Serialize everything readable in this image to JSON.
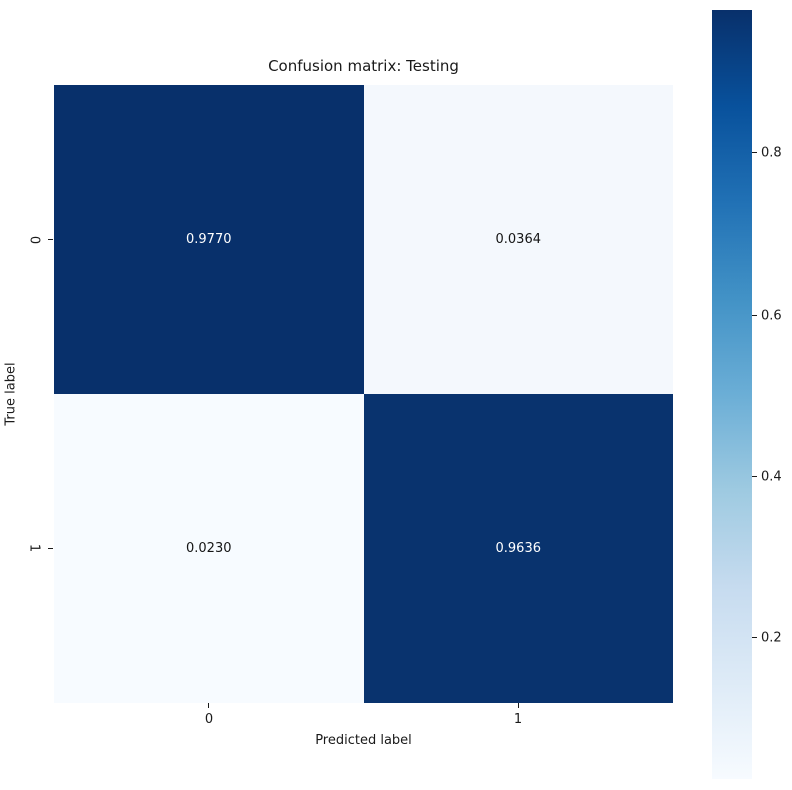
{
  "chart_data": {
    "type": "heatmap",
    "title": "Confusion matrix: Testing",
    "xlabel": "Predicted label",
    "ylabel": "True label",
    "x_tick_labels": [
      "0",
      "1"
    ],
    "y_tick_labels": [
      "0",
      "1"
    ],
    "matrix": [
      [
        0.977,
        0.0364
      ],
      [
        0.023,
        0.9636
      ]
    ],
    "cells": [
      {
        "row": "0",
        "col": "0",
        "label": "0.9770",
        "bg": "#08306b",
        "fg": "#ffffff"
      },
      {
        "row": "0",
        "col": "1",
        "label": "0.0364",
        "bg": "#f4f8fd",
        "fg": "#151515"
      },
      {
        "row": "1",
        "col": "0",
        "label": "0.0230",
        "bg": "#f7fbff",
        "fg": "#151515"
      },
      {
        "row": "1",
        "col": "1",
        "label": "0.9636",
        "bg": "#09336e",
        "fg": "#ffffff"
      }
    ],
    "colormap": "Blues",
    "grid": false,
    "colorbar": {
      "position": "right",
      "tick_labels": [
        "0.8",
        "0.6",
        "0.4",
        "0.2"
      ],
      "ticks": [
        0.8,
        0.6,
        0.4,
        0.2
      ],
      "min_value": 0.023,
      "max_value": 0.977,
      "min_color": "#f7fbff",
      "max_color": "#08306b"
    }
  },
  "colors": {
    "background": "#ffffff",
    "text": "#1a1a1a",
    "annotation_on_dark": "#ffffff",
    "annotation_on_light": "#151515"
  }
}
